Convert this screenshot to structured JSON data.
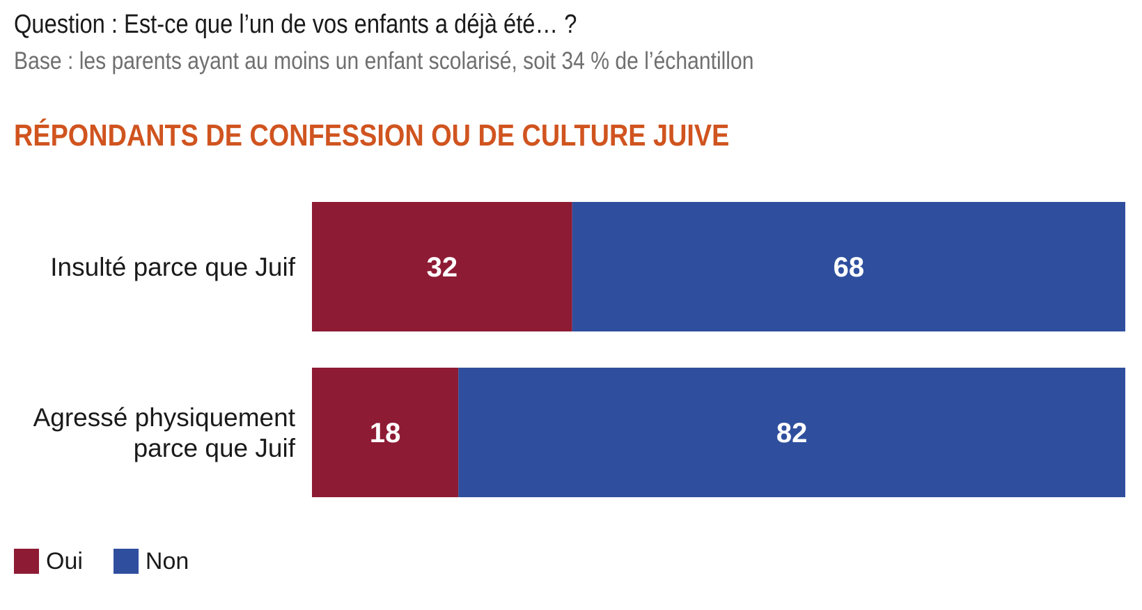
{
  "header": {
    "question": "Question : Est-ce que l’un de vos enfants a déjà été… ?",
    "base": "Base : les parents ayant au moins un enfant scolarisé, soit 34 % de l’échantillon"
  },
  "section_title": "RÉPONDANTS DE CONFESSION OU DE CULTURE JUIVE",
  "colors": {
    "title": "#d0541f",
    "oui": "#8e1b34",
    "non": "#2f4f9e"
  },
  "chart_data": {
    "type": "bar",
    "orientation": "horizontal",
    "stacked": true,
    "categories": [
      [
        "Insulté parce que Juif"
      ],
      [
        "Agressé physiquement",
        "parce que Juif"
      ]
    ],
    "series": [
      {
        "name": "Oui",
        "values": [
          32,
          18
        ],
        "color": "#8e1b34"
      },
      {
        "name": "Non",
        "values": [
          68,
          82
        ],
        "color": "#2f4f9e"
      }
    ],
    "xlim": [
      0,
      100
    ],
    "grid": false,
    "legend": "bottom-left"
  }
}
